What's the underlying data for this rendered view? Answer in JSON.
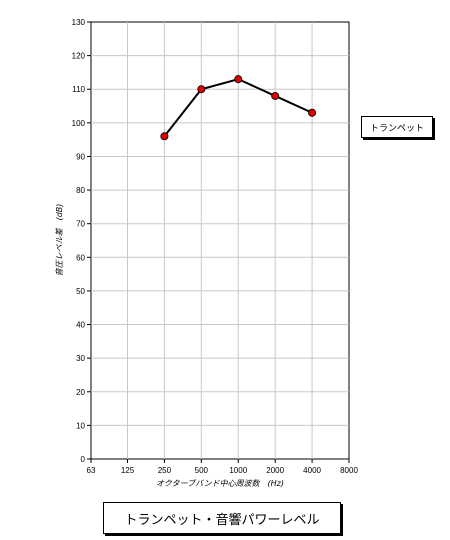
{
  "chart_data": {
    "type": "line",
    "x_scale": "log2",
    "x": [
      250,
      500,
      1000,
      2000,
      4000
    ],
    "categories": [
      "63",
      "125",
      "250",
      "500",
      "1000",
      "2000",
      "4000",
      "8000"
    ],
    "xlim": [
      63,
      8000
    ],
    "ylim": [
      0,
      130
    ],
    "yticks": [
      "0",
      "10",
      "20",
      "30",
      "40",
      "50",
      "60",
      "70",
      "80",
      "90",
      "100",
      "110",
      "120",
      "130"
    ],
    "grid": true,
    "legend": "right",
    "xlabel": "オクターブバンド中心周波数　(Hz)",
    "ylabel": "音圧レベル差　(dB)",
    "series": [
      {
        "name": "トランペット",
        "values": [
          96,
          110,
          113,
          108,
          103
        ],
        "line_color": "#000000",
        "marker_color": "#e00000"
      }
    ],
    "caption": "トランペット・音響パワーレベル"
  }
}
